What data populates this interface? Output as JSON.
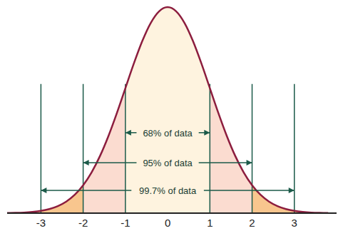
{
  "chart_data": {
    "type": "area",
    "x": [
      -3.8,
      -3.6,
      -3.4,
      -3.2,
      -3.0,
      -2.8,
      -2.6,
      -2.4,
      -2.2,
      -2.0,
      -1.8,
      -1.6,
      -1.4,
      -1.2,
      -1.0,
      -0.8,
      -0.6,
      -0.4,
      -0.2,
      0,
      0.2,
      0.4,
      0.6,
      0.8,
      1.0,
      1.2,
      1.4,
      1.6,
      1.8,
      2.0,
      2.2,
      2.4,
      2.6,
      2.8,
      3.0,
      3.2,
      3.4,
      3.6,
      3.8
    ],
    "values": [
      0.0003,
      0.0006,
      0.0012,
      0.0024,
      0.0044,
      0.0079,
      0.0136,
      0.0224,
      0.0355,
      0.054,
      0.079,
      0.1109,
      0.1497,
      0.1942,
      0.242,
      0.2897,
      0.3332,
      0.3683,
      0.391,
      0.3989,
      0.391,
      0.3683,
      0.3332,
      0.2897,
      0.242,
      0.1942,
      0.1497,
      0.1109,
      0.079,
      0.054,
      0.0355,
      0.0224,
      0.0136,
      0.0079,
      0.0044,
      0.0024,
      0.0012,
      0.0006,
      0.0003
    ],
    "color": "#8c1d3e",
    "xlim": [
      -3.8,
      4.0
    ],
    "xticks": [
      -3,
      -2,
      -1,
      0,
      1,
      2,
      3
    ],
    "ylim": [
      0,
      0.41
    ],
    "tick_labels": "x",
    "grid": false,
    "regions": [
      {
        "from": -3.8,
        "to": -2,
        "color": "#f8c68e"
      },
      {
        "from": -2,
        "to": -1,
        "color": "#fbdcd0"
      },
      {
        "from": -1,
        "to": 1,
        "color": "#fef3df"
      },
      {
        "from": 1,
        "to": 2,
        "color": "#fbdcd0"
      },
      {
        "from": 2,
        "to": 3.8,
        "color": "#f8c68e"
      }
    ],
    "boundaries": [
      -3,
      -2,
      -1,
      1,
      2,
      3
    ],
    "annotations": [
      {
        "text": "68% of data",
        "from": -1,
        "to": 1
      },
      {
        "text": "95% of data",
        "from": -2,
        "to": 2
      },
      {
        "text": "99.7% of data",
        "from": -3,
        "to": 3
      }
    ]
  }
}
